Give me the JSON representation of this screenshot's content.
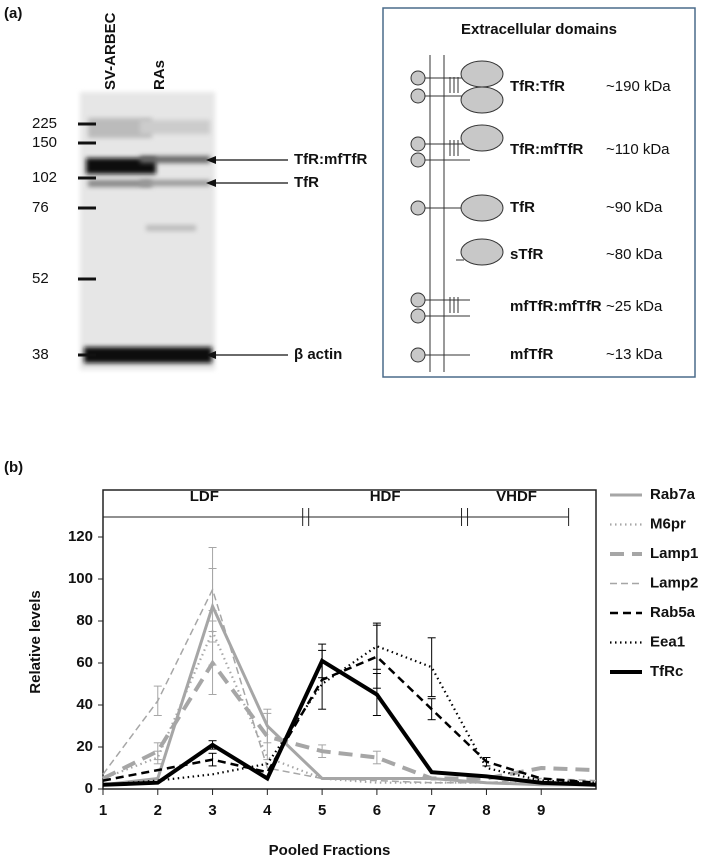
{
  "panel_a": {
    "label": "(a)",
    "lanes": [
      "SV-ARBEC",
      "RAs"
    ],
    "markers": [
      225,
      150,
      102,
      76,
      52,
      38
    ],
    "bands": [
      "TfR:mfTfR",
      "TfR",
      "β actin"
    ]
  },
  "diagram": {
    "title": "Extracellular domains",
    "rows": [
      {
        "label": "TfR:TfR",
        "size": "~190 kDa"
      },
      {
        "label": "TfR:mfTfR",
        "size": "~110 kDa"
      },
      {
        "label": "TfR",
        "size": "~90 kDa"
      },
      {
        "label": "sTfR",
        "size": "~80 kDa"
      },
      {
        "label": "mfTfR:mfTfR",
        "size": "~25 kDa"
      },
      {
        "label": "mfTfR",
        "size": "~13 kDa"
      }
    ]
  },
  "chart_data": {
    "type": "line",
    "panel_label": "(b)",
    "x_label": "Pooled Fractions",
    "y_label": "Relative levels",
    "x": [
      1,
      2,
      3,
      4,
      5,
      6,
      7,
      8,
      9,
      10
    ],
    "xlim": [
      1,
      10
    ],
    "xticks": [
      1,
      2,
      3,
      4,
      5,
      6,
      7,
      8,
      9
    ],
    "ylim": [
      0,
      140
    ],
    "yticks": [
      0,
      20,
      40,
      60,
      80,
      100,
      120
    ],
    "regions": [
      {
        "label": "LDF",
        "from": 1,
        "to": 4.7
      },
      {
        "label": "HDF",
        "from": 4.7,
        "to": 7.6
      },
      {
        "label": "VHDF",
        "from": 7.6,
        "to": 9.5
      }
    ],
    "legend": "right",
    "series": [
      {
        "name": "Rab7a",
        "color": "#a6a6a6",
        "style": "solid",
        "values": [
          2,
          5,
          87,
          30,
          5,
          5,
          5,
          3,
          2,
          2
        ],
        "errors": [
          null,
          null,
          28,
          8,
          null,
          null,
          null,
          null,
          null,
          null
        ]
      },
      {
        "name": "M6pr",
        "color": "#a6a6a6",
        "style": "dotted",
        "values": [
          5,
          15,
          75,
          15,
          5,
          3,
          3,
          3,
          3,
          3
        ],
        "errors": [
          null,
          3,
          5,
          null,
          null,
          null,
          null,
          null,
          null,
          null
        ]
      },
      {
        "name": "Lamp1",
        "color": "#a6a6a6",
        "style": "longdash",
        "values": [
          5,
          18,
          60,
          25,
          18,
          15,
          5,
          5,
          10,
          9
        ],
        "errors": [
          null,
          4,
          15,
          11,
          3,
          3,
          null,
          null,
          null,
          null
        ]
      },
      {
        "name": "Lamp2",
        "color": "#a6a6a6",
        "style": "thindash",
        "values": [
          7,
          42,
          95,
          10,
          5,
          4,
          3,
          3,
          5,
          4
        ],
        "errors": [
          null,
          7,
          10,
          null,
          null,
          null,
          null,
          null,
          null,
          null
        ]
      },
      {
        "name": "Rab5a",
        "color": "#000000",
        "style": "dash",
        "values": [
          4,
          9,
          14,
          8,
          52,
          63,
          38,
          13,
          5,
          3
        ],
        "errors": [
          null,
          null,
          3,
          null,
          14,
          15,
          5,
          2,
          null,
          null
        ]
      },
      {
        "name": "Eea1",
        "color": "#000000",
        "style": "dotted",
        "values": [
          2,
          4,
          7,
          12,
          50,
          68,
          58,
          10,
          4,
          3
        ],
        "errors": [
          null,
          null,
          null,
          null,
          null,
          11,
          14,
          null,
          null,
          null
        ]
      },
      {
        "name": "TfRc",
        "color": "#000000",
        "style": "thick",
        "values": [
          2,
          3,
          21,
          5,
          61,
          45,
          8,
          6,
          3,
          2
        ],
        "errors": [
          null,
          null,
          2,
          null,
          8,
          10,
          null,
          null,
          null,
          null
        ]
      }
    ]
  }
}
